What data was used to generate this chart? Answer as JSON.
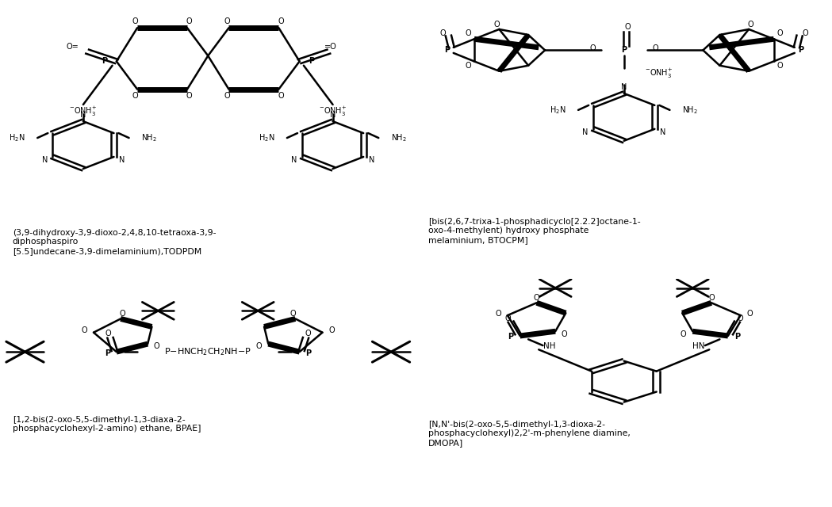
{
  "bg_color": "#ffffff",
  "panel_labels": [
    "(3,9-dihydroxy-3,9-dioxo-2,4,8,10-tetraoxa-3,9-\ndiphosphaspiro\n[5.5]undecane-3,9-dimelaminium),TODPDM",
    "[bis(2,6,7-trixa-1-phosphadicyclo[2.2.2]octane-1-\noxo-4-methylent) hydroxy phosphate\nmelaminium, BTOCPM]",
    "[1,2-bis(2-oxo-5,5-dimethyl-1,3-diaxa-2-\nphosphacyclohexyl-2-amino) ethane, BPAE]",
    "[N,N'-bis(2-oxo-5,5-dimethyl-1,3-dioxa-2-\nphosphacyclohexyl)2,2'-m-phenylene diamine,\nDMOPA]"
  ]
}
